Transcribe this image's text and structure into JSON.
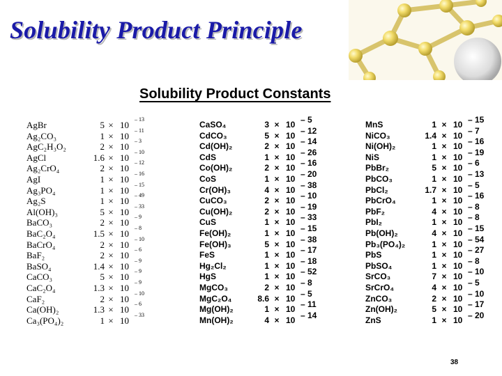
{
  "slide": {
    "title": "Solubility Product Principle",
    "page_number": "38"
  },
  "table": {
    "title": "Solubility Product Constants",
    "times_symbol": "×",
    "base": "10",
    "columns": [
      [
        {
          "compound": "AgBr",
          "mantissa": "5",
          "exponent": "– 13"
        },
        {
          "compound": "Ag₂CO₃",
          "mantissa": "1",
          "exponent": "– 11"
        },
        {
          "compound": "AgC₂H₃O₂",
          "mantissa": "2",
          "exponent": "– 3"
        },
        {
          "compound": "AgCl",
          "mantissa": "1.6",
          "exponent": "– 10"
        },
        {
          "compound": "Ag₂CrO₄",
          "mantissa": "2",
          "exponent": "– 12"
        },
        {
          "compound": "AgI",
          "mantissa": "1",
          "exponent": "– 16"
        },
        {
          "compound": "Ag₃PO₄",
          "mantissa": "1",
          "exponent": "– 15"
        },
        {
          "compound": "Ag₂S",
          "mantissa": "1",
          "exponent": "– 49"
        },
        {
          "compound": "Al(OH)₃",
          "mantissa": "5",
          "exponent": "– 33"
        },
        {
          "compound": "BaCO₃",
          "mantissa": "2",
          "exponent": "– 9"
        },
        {
          "compound": "BaC₂O₄",
          "mantissa": "1.5",
          "exponent": "– 8"
        },
        {
          "compound": "BaCrO₄",
          "mantissa": "2",
          "exponent": "– 10"
        },
        {
          "compound": "BaF₂",
          "mantissa": "2",
          "exponent": "– 6"
        },
        {
          "compound": "BaSO₄",
          "mantissa": "1.4",
          "exponent": "– 9"
        },
        {
          "compound": "CaCO₃",
          "mantissa": "5",
          "exponent": "– 9"
        },
        {
          "compound": "CaC₂O₄",
          "mantissa": "1.3",
          "exponent": "– 9"
        },
        {
          "compound": "CaF₂",
          "mantissa": "2",
          "exponent": "– 10"
        },
        {
          "compound": "Ca(OH)₂",
          "mantissa": "1.3",
          "exponent": "– 6"
        },
        {
          "compound": "Ca₃(PO₄)₂",
          "mantissa": "1",
          "exponent": "– 33"
        }
      ],
      [
        {
          "compound": "CaSO₄",
          "mantissa": "3",
          "exponent": "– 5"
        },
        {
          "compound": "CdCO₃",
          "mantissa": "5",
          "exponent": "– 12"
        },
        {
          "compound": "Cd(OH)₂",
          "mantissa": "2",
          "exponent": "– 14"
        },
        {
          "compound": "CdS",
          "mantissa": "1",
          "exponent": "– 26"
        },
        {
          "compound": "Co(OH)₂",
          "mantissa": "2",
          "exponent": "– 16"
        },
        {
          "compound": "CoS",
          "mantissa": "1",
          "exponent": "– 20"
        },
        {
          "compound": "Cr(OH)₃",
          "mantissa": "4",
          "exponent": "– 38"
        },
        {
          "compound": "CuCO₃",
          "mantissa": "2",
          "exponent": "– 10"
        },
        {
          "compound": "Cu(OH)₂",
          "mantissa": "2",
          "exponent": "– 19"
        },
        {
          "compound": "CuS",
          "mantissa": "1",
          "exponent": "– 33"
        },
        {
          "compound": "Fe(OH)₂",
          "mantissa": "1",
          "exponent": "– 15"
        },
        {
          "compound": "Fe(OH)₃",
          "mantissa": "5",
          "exponent": "– 38"
        },
        {
          "compound": "FeS",
          "mantissa": "1",
          "exponent": "– 17"
        },
        {
          "compound": "Hg₂Cl₂",
          "mantissa": "1",
          "exponent": "– 18"
        },
        {
          "compound": "HgS",
          "mantissa": "1",
          "exponent": "– 52"
        },
        {
          "compound": "MgCO₃",
          "mantissa": "2",
          "exponent": "– 8"
        },
        {
          "compound": "MgC₂O₄",
          "mantissa": "8.6",
          "exponent": "– 5"
        },
        {
          "compound": "Mg(OH)₂",
          "mantissa": "1",
          "exponent": "– 11"
        },
        {
          "compound": "Mn(OH)₂",
          "mantissa": "4",
          "exponent": "– 14"
        }
      ],
      [
        {
          "compound": "MnS",
          "mantissa": "1",
          "exponent": "– 15"
        },
        {
          "compound": "NiCO₃",
          "mantissa": "1.4",
          "exponent": "– 7"
        },
        {
          "compound": "Ni(OH)₂",
          "mantissa": "1",
          "exponent": "– 16"
        },
        {
          "compound": "NiS",
          "mantissa": "1",
          "exponent": "– 19"
        },
        {
          "compound": "PbBr₂",
          "mantissa": "5",
          "exponent": "– 6"
        },
        {
          "compound": "PbCO₃",
          "mantissa": "1",
          "exponent": "– 13"
        },
        {
          "compound": "PbCl₂",
          "mantissa": "1.7",
          "exponent": "– 5"
        },
        {
          "compound": "PbCrO₄",
          "mantissa": "1",
          "exponent": "– 16"
        },
        {
          "compound": "PbF₂",
          "mantissa": "4",
          "exponent": "– 8"
        },
        {
          "compound": "PbI₂",
          "mantissa": "1",
          "exponent": "– 8"
        },
        {
          "compound": "Pb(OH)₂",
          "mantissa": "4",
          "exponent": "– 15"
        },
        {
          "compound": "Pb₃(PO₄)₂",
          "mantissa": "1",
          "exponent": "– 54"
        },
        {
          "compound": "PbS",
          "mantissa": "1",
          "exponent": "– 27"
        },
        {
          "compound": "PbSO₄",
          "mantissa": "1",
          "exponent": "– 8"
        },
        {
          "compound": "SrCO₃",
          "mantissa": "7",
          "exponent": "– 10"
        },
        {
          "compound": "SrCrO₄",
          "mantissa": "4",
          "exponent": "– 5"
        },
        {
          "compound": "ZnCO₃",
          "mantissa": "2",
          "exponent": "– 10"
        },
        {
          "compound": "Zn(OH)₂",
          "mantissa": "5",
          "exponent": "– 17"
        },
        {
          "compound": "ZnS",
          "mantissa": "1",
          "exponent": "– 20"
        }
      ]
    ]
  }
}
